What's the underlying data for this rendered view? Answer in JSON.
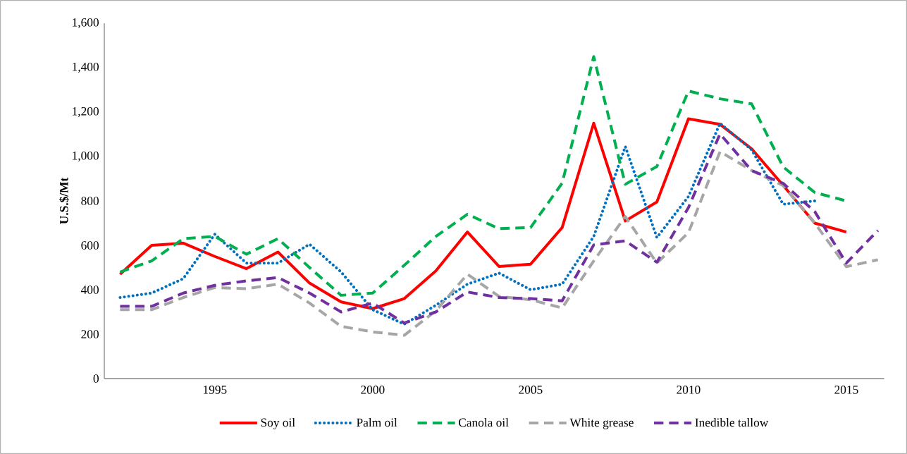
{
  "chart_data": {
    "type": "line",
    "ylabel": "U.S.$/Mt",
    "x": [
      1992,
      1993,
      1994,
      1995,
      1996,
      1997,
      1998,
      1999,
      2000,
      2001,
      2002,
      2003,
      2004,
      2005,
      2006,
      2007,
      2008,
      2009,
      2010,
      2011,
      2012,
      2013,
      2014,
      2015,
      2016
    ],
    "xlim": [
      1991.5,
      2016.2
    ],
    "xticks": [
      1995,
      2000,
      2005,
      2010,
      2015
    ],
    "ylim": [
      0,
      1600
    ],
    "yticks": [
      0,
      200,
      400,
      600,
      800,
      {
        "value": 1000,
        "label": "1,000"
      },
      {
        "value": 1200,
        "label": "1,200"
      },
      {
        "value": 1400,
        "label": "1,400"
      },
      {
        "value": 1600,
        "label": "1,600"
      }
    ],
    "legend": "bottom",
    "grid": false,
    "marker": "none",
    "series": [
      {
        "name": "Soy oil",
        "color": "#ff0000",
        "line_style": "solid",
        "values": [
          470,
          600,
          610,
          550,
          495,
          570,
          430,
          345,
          315,
          360,
          485,
          660,
          505,
          515,
          680,
          1150,
          710,
          795,
          1170,
          1145,
          1035,
          870,
          700,
          660,
          null
        ]
      },
      {
        "name": "Palm oil",
        "color": "#0070c0",
        "line_style": "dotted",
        "values": [
          365,
          385,
          450,
          650,
          520,
          520,
          605,
          480,
          310,
          245,
          330,
          425,
          475,
          400,
          425,
          640,
          1045,
          635,
          820,
          1150,
          1030,
          785,
          800,
          null,
          null
        ]
      },
      {
        "name": "Canola oil",
        "color": "#00b050",
        "line_style": "dashed",
        "values": [
          480,
          530,
          630,
          640,
          560,
          630,
          500,
          375,
          385,
          510,
          640,
          740,
          675,
          680,
          880,
          1450,
          875,
          955,
          1295,
          1260,
          1237,
          953,
          838,
          800,
          null
        ]
      },
      {
        "name": "White grease",
        "color": "#a6a6a6",
        "line_style": "dashed",
        "values": [
          310,
          310,
          365,
          410,
          405,
          425,
          340,
          235,
          210,
          195,
          305,
          470,
          370,
          355,
          318,
          530,
          730,
          520,
          657,
          1022,
          937,
          869,
          700,
          504,
          535
        ]
      },
      {
        "name": "Inedible tallow",
        "color": "#7030a0",
        "line_style": "dashed",
        "values": [
          325,
          325,
          385,
          420,
          440,
          455,
          385,
          300,
          340,
          250,
          300,
          390,
          365,
          360,
          350,
          602,
          620,
          524,
          770,
          1102,
          937,
          879,
          752,
          520,
          667
        ]
      }
    ]
  }
}
